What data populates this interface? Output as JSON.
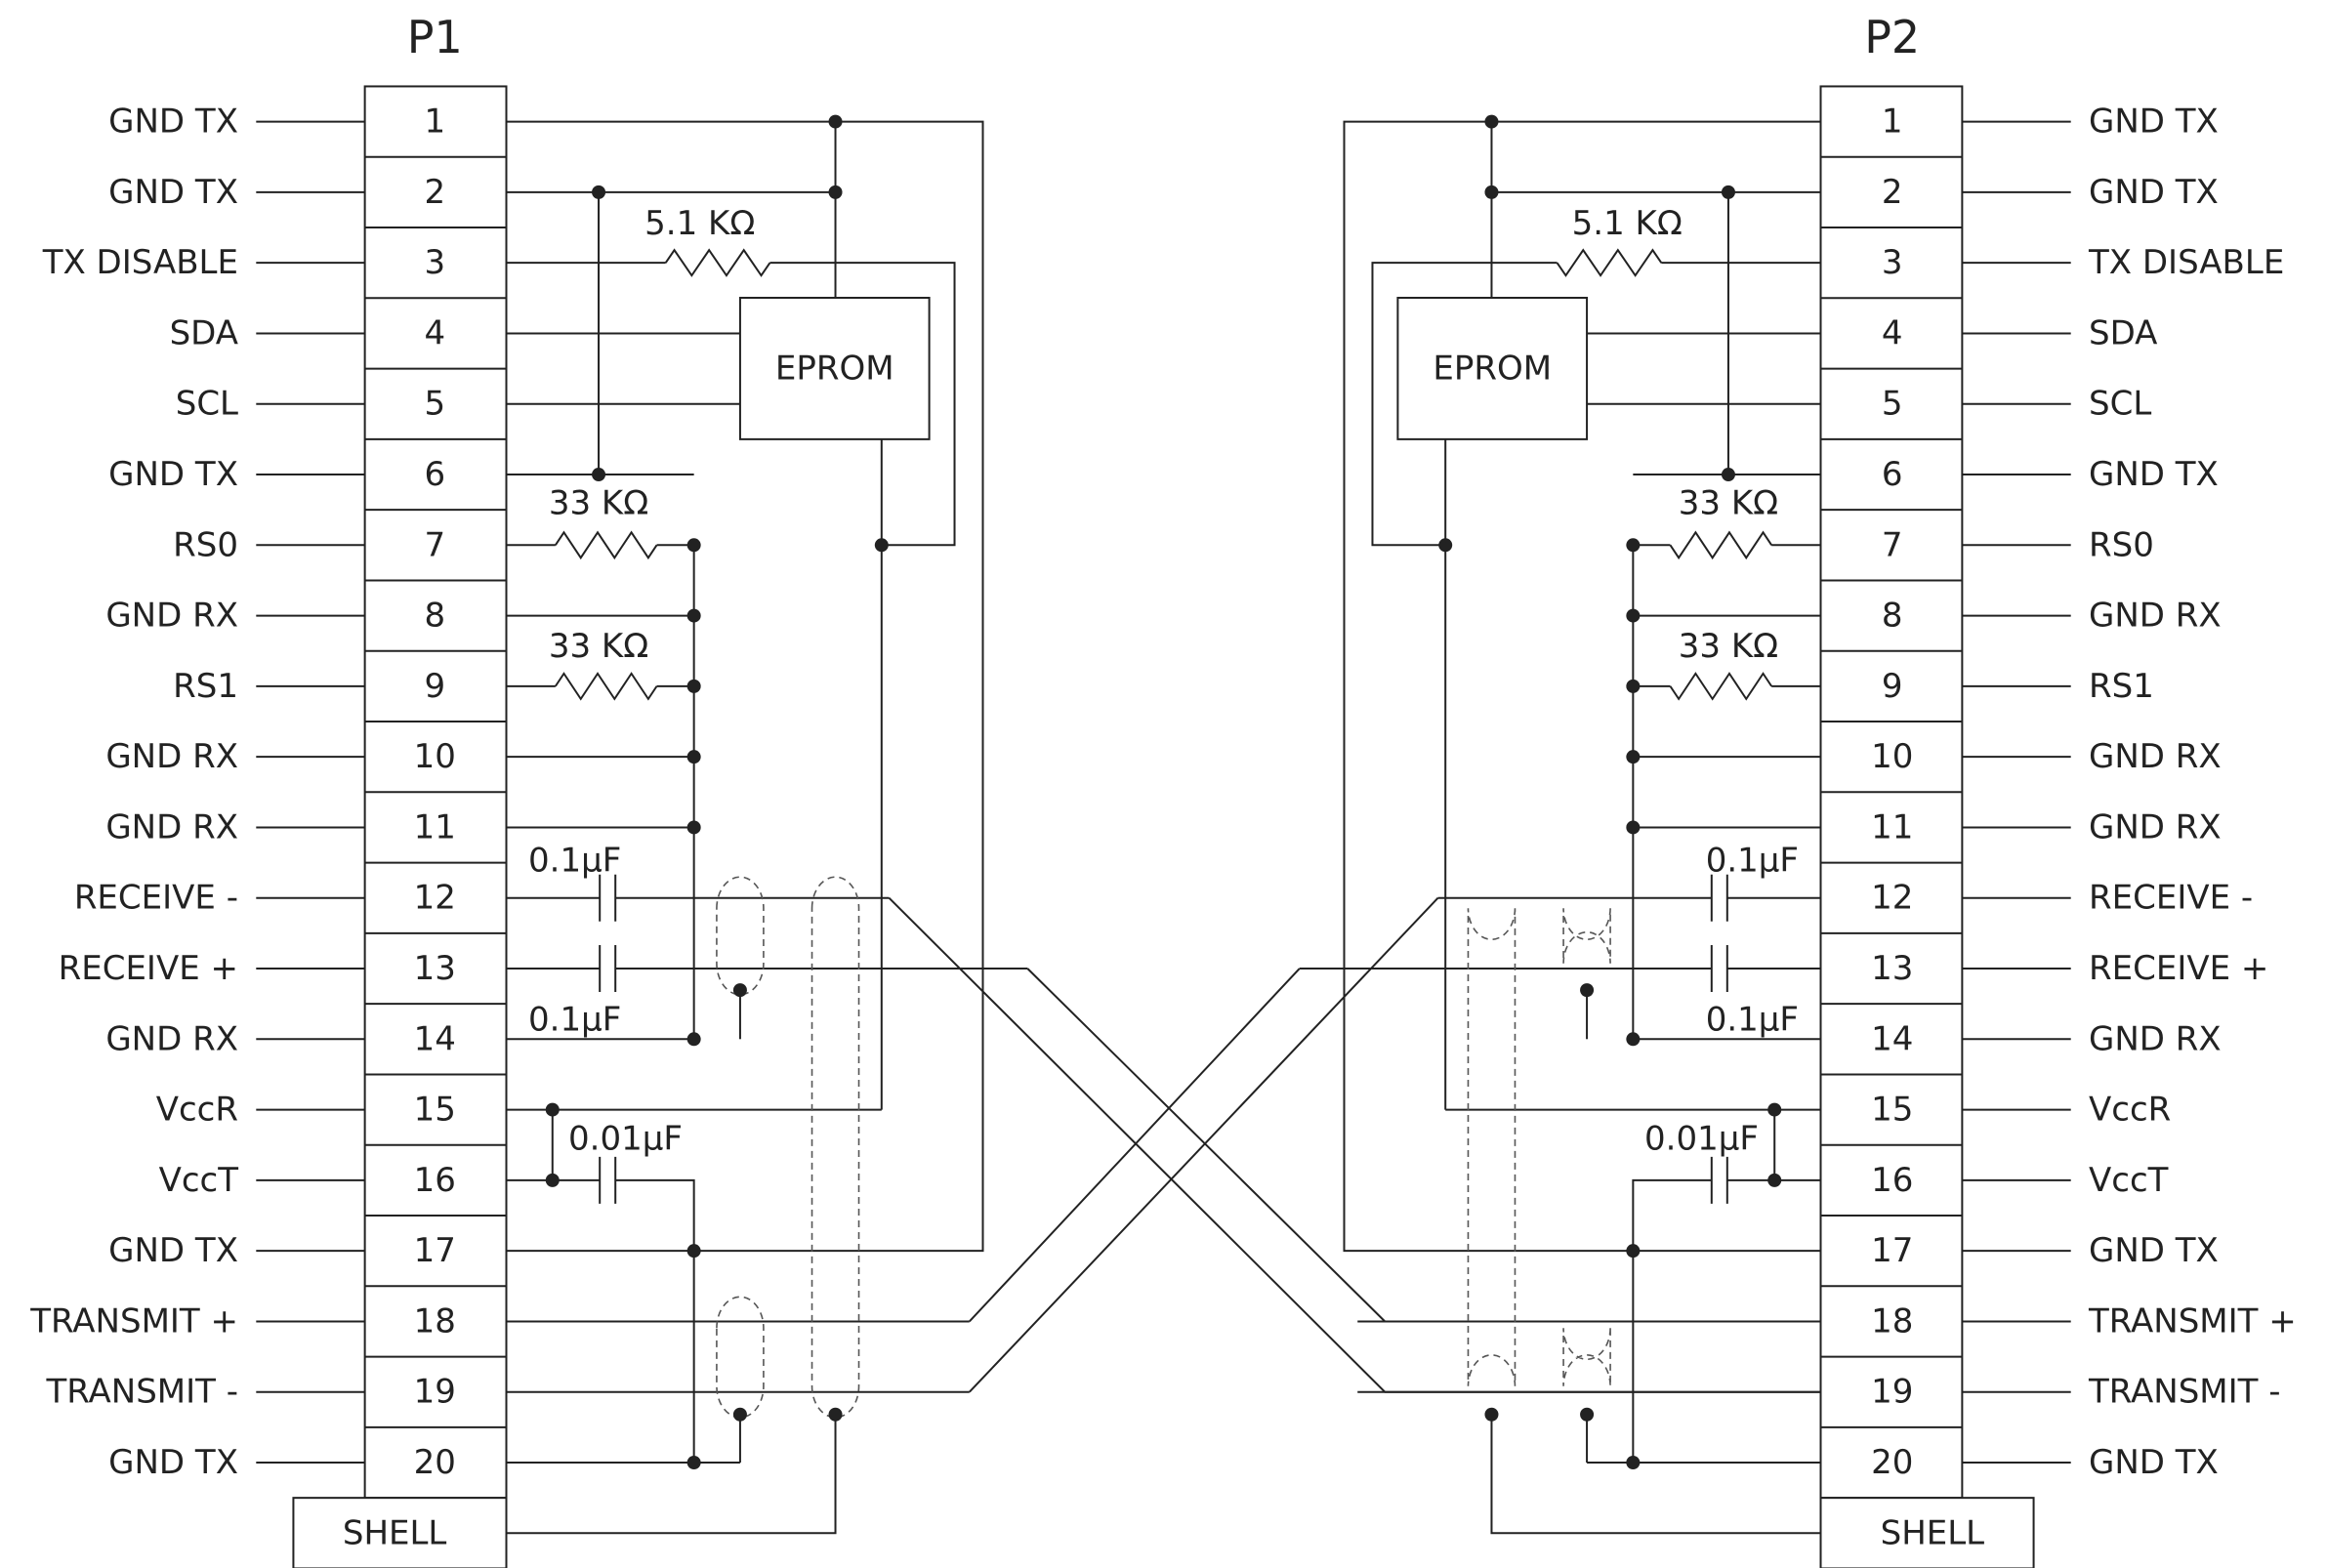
{
  "connectors": {
    "left": {
      "title": "P1",
      "pins": [
        {
          "num": "1",
          "label": "GND TX"
        },
        {
          "num": "2",
          "label": "GND TX"
        },
        {
          "num": "3",
          "label": "TX DISABLE"
        },
        {
          "num": "4",
          "label": "SDA"
        },
        {
          "num": "5",
          "label": "SCL"
        },
        {
          "num": "6",
          "label": "GND TX"
        },
        {
          "num": "7",
          "label": "RS0"
        },
        {
          "num": "8",
          "label": "GND RX"
        },
        {
          "num": "9",
          "label": "RS1"
        },
        {
          "num": "10",
          "label": "GND RX"
        },
        {
          "num": "11",
          "label": "GND RX"
        },
        {
          "num": "12",
          "label": "RECEIVE -"
        },
        {
          "num": "13",
          "label": "RECEIVE +"
        },
        {
          "num": "14",
          "label": "GND RX"
        },
        {
          "num": "15",
          "label": "VccR"
        },
        {
          "num": "16",
          "label": "VccT"
        },
        {
          "num": "17",
          "label": "GND TX"
        },
        {
          "num": "18",
          "label": "TRANSMIT +"
        },
        {
          "num": "19",
          "label": "TRANSMIT -"
        },
        {
          "num": "20",
          "label": "GND TX"
        }
      ],
      "shell": "SHELL"
    },
    "right": {
      "title": "P2",
      "pins": [
        {
          "num": "1",
          "label": "GND TX"
        },
        {
          "num": "2",
          "label": "GND TX"
        },
        {
          "num": "3",
          "label": "TX DISABLE"
        },
        {
          "num": "4",
          "label": "SDA"
        },
        {
          "num": "5",
          "label": "SCL"
        },
        {
          "num": "6",
          "label": "GND TX"
        },
        {
          "num": "7",
          "label": "RS0"
        },
        {
          "num": "8",
          "label": "GND RX"
        },
        {
          "num": "9",
          "label": "RS1"
        },
        {
          "num": "10",
          "label": "GND RX"
        },
        {
          "num": "11",
          "label": "GND RX"
        },
        {
          "num": "12",
          "label": "RECEIVE -"
        },
        {
          "num": "13",
          "label": "RECEIVE +"
        },
        {
          "num": "14",
          "label": "GND RX"
        },
        {
          "num": "15",
          "label": "VccR"
        },
        {
          "num": "16",
          "label": "VccT"
        },
        {
          "num": "17",
          "label": "GND TX"
        },
        {
          "num": "18",
          "label": "TRANSMIT +"
        },
        {
          "num": "19",
          "label": "TRANSMIT -"
        },
        {
          "num": "20",
          "label": "GND TX"
        }
      ],
      "shell": "SHELL"
    }
  },
  "components": {
    "eprom": "EPROM",
    "r_txdisable": "5.1 KΩ",
    "r_rs0": "33 KΩ",
    "r_rs1": "33 KΩ",
    "c_receive_minus": "0.1μF",
    "c_receive_plus": "0.1μF",
    "c_vcc": "0.01μF"
  }
}
